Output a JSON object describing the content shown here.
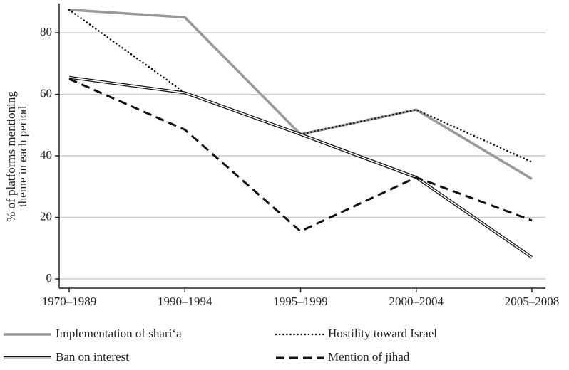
{
  "chart_data": {
    "type": "line",
    "ylabel": [
      "% of platforms mentioning",
      "theme in each period"
    ],
    "categories": [
      "1970–1989",
      "1990–1994",
      "1995–1999",
      "2000–2004",
      "2005–2008"
    ],
    "series": [
      {
        "name": "Implementation of shari‘a",
        "color": "#999999",
        "style": "solid",
        "values": [
          87.5,
          85,
          47,
          55,
          32.5
        ]
      },
      {
        "name": "Hostility toward Israel",
        "color": "#111111",
        "style": "dotted",
        "values": [
          87.5,
          60.5,
          47,
          55,
          38
        ]
      },
      {
        "name": "Ban on interest",
        "color": "#111111",
        "style": "double",
        "values": [
          65.5,
          60.5,
          47,
          33,
          7
        ]
      },
      {
        "name": "Mention of jihad",
        "color": "#111111",
        "style": "dashed",
        "values": [
          65,
          48.5,
          15.5,
          33,
          19
        ]
      }
    ],
    "ylim": [
      -3,
      89.5
    ],
    "yticks": [
      0,
      20,
      40,
      60,
      80
    ],
    "grid": true
  }
}
